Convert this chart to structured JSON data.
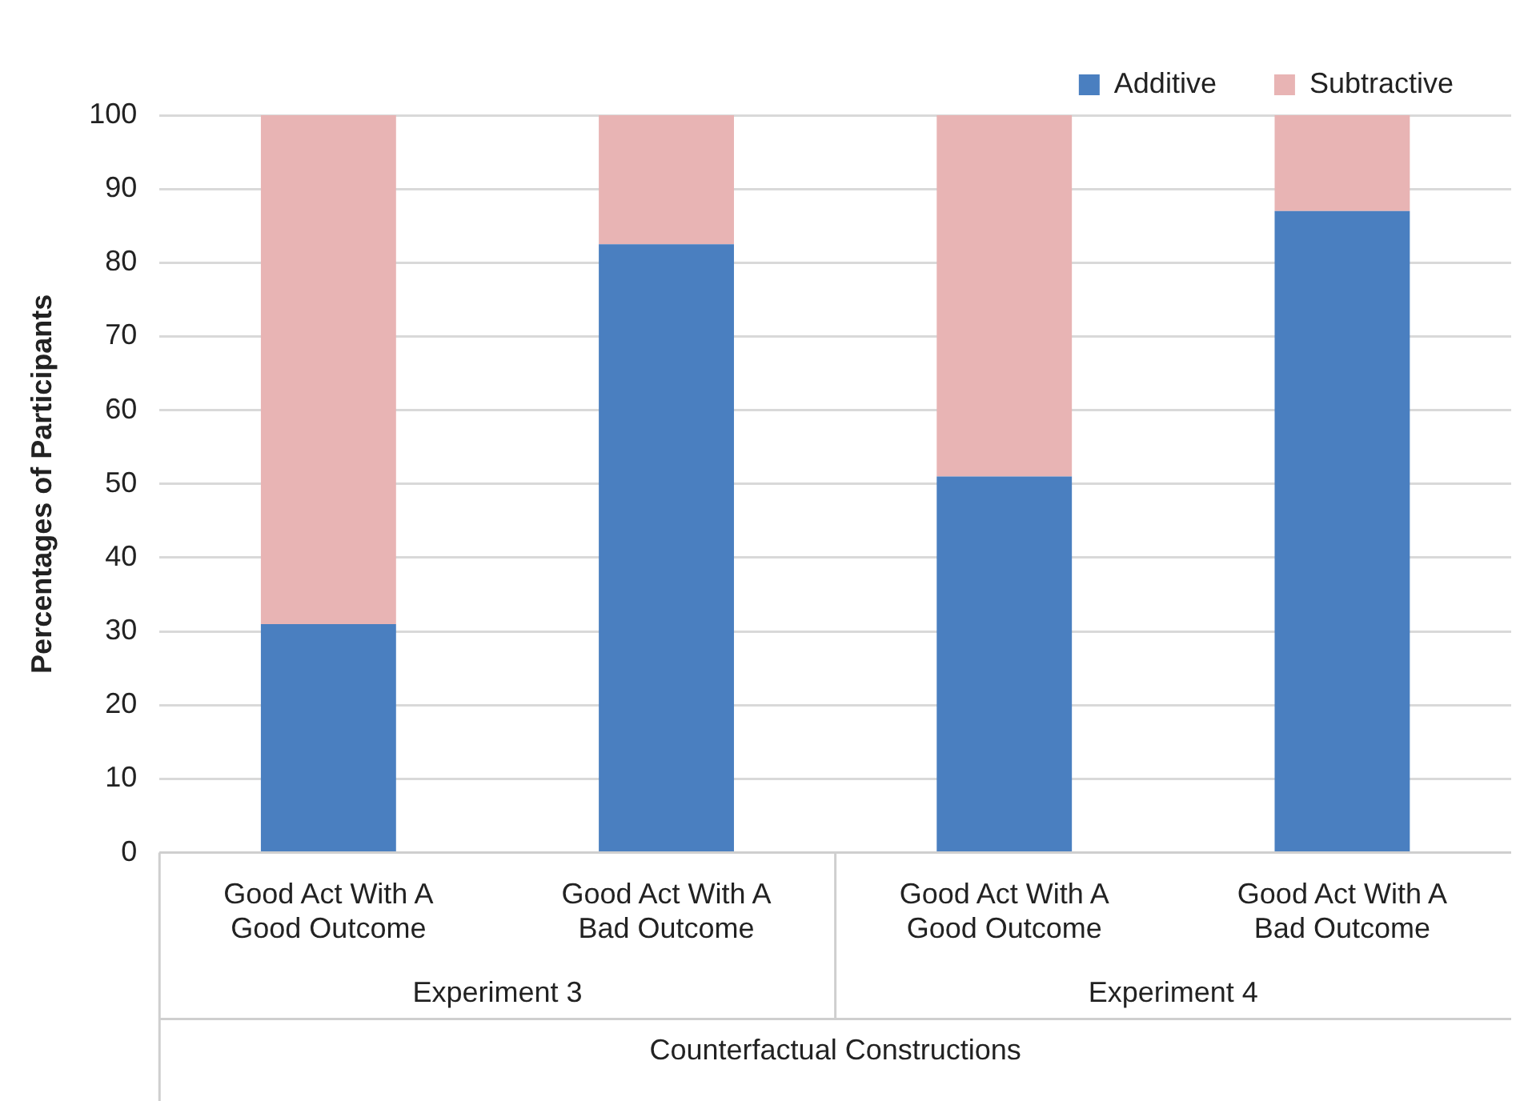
{
  "chart_data": {
    "type": "bar",
    "stacked": true,
    "xlabel": "Counterfactual Constructions",
    "ylabel": "Percentages of Participants",
    "categories": [
      "Good Act With A Good Outcome",
      "Good Act With A Bad Outcome",
      "Good Act With A Good Outcome",
      "Good Act With A Bad Outcome"
    ],
    "series": [
      {
        "name": "Additive",
        "color": "#4a7fc0",
        "values": [
          31,
          82.5,
          51,
          87
        ]
      },
      {
        "name": "Subtractive",
        "color": "#e8b4b4",
        "values": [
          69,
          17.5,
          49,
          13
        ]
      }
    ],
    "ylim": [
      0,
      100
    ],
    "yticks": [
      0,
      10,
      20,
      30,
      40,
      50,
      60,
      70,
      80,
      90,
      100
    ],
    "grid": "y",
    "legend": "top right",
    "annotations": [
      "Experiment 3",
      "Experiment 4"
    ]
  }
}
